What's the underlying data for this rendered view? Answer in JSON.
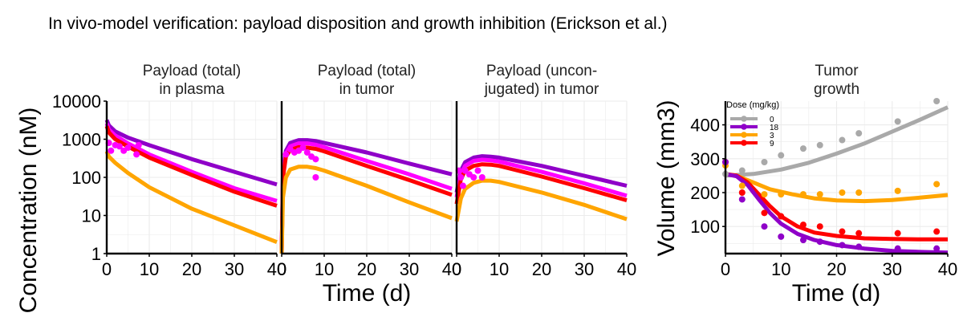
{
  "figure": {
    "title": "In vivo-model verification: payload disposition and growth inhibition (Erickson et al.)"
  },
  "colors": {
    "dose_0": "#a9a9a9",
    "dose_18": "#8f00c8",
    "dose_3": "#ffa500",
    "dose_9": "#ff0000",
    "dose_mag": "#ff00ff",
    "grid": "#ebebeb"
  },
  "chart_data": [
    {
      "id": "plasma",
      "type": "line",
      "title": "Payload (total)\nin plasma",
      "title_lines": [
        "Payload (total)",
        "in plasma"
      ],
      "ylabel": "Concentration (nM)",
      "yscale": "log",
      "ylim": [
        1,
        10000
      ],
      "xlim": [
        0,
        40
      ],
      "x_ticks": [
        0,
        10,
        20,
        30,
        40
      ],
      "y_ticks": [
        1,
        10,
        100,
        1000,
        10000
      ],
      "y_tick_labels": [
        "1",
        "10",
        "100",
        "1000",
        "10000"
      ],
      "grid": true,
      "series": [
        {
          "color": "dose_18",
          "x": [
            0,
            0.5,
            2,
            5,
            10,
            20,
            30,
            40
          ],
          "y": [
            3200,
            2300,
            1600,
            1100,
            700,
            300,
            140,
            65
          ]
        },
        {
          "color": "dose_mag",
          "x": [
            0,
            0.5,
            2,
            5,
            10,
            20,
            30,
            40
          ],
          "y": [
            2600,
            1800,
            1250,
            780,
            400,
            140,
            52,
            24
          ]
        },
        {
          "color": "dose_9",
          "x": [
            0,
            0.5,
            2,
            5,
            10,
            20,
            30,
            40
          ],
          "y": [
            2200,
            1500,
            1000,
            640,
            330,
            115,
            42,
            18
          ]
        },
        {
          "color": "dose_3",
          "x": [
            0,
            0.5,
            2,
            5,
            10,
            20,
            30,
            40
          ],
          "y": [
            480,
            350,
            240,
            130,
            55,
            15,
            5.5,
            2
          ]
        }
      ],
      "points": [
        {
          "color": "dose_mag",
          "x": [
            0.5,
            1,
            2,
            3,
            4,
            5,
            7,
            7.5
          ],
          "y": [
            800,
            500,
            700,
            650,
            500,
            600,
            400,
            700
          ]
        }
      ]
    },
    {
      "id": "tumor_total",
      "type": "line",
      "title": "Payload (total)\nin tumor",
      "title_lines": [
        "Payload (total)",
        "in tumor"
      ],
      "yscale": "log",
      "ylim": [
        1,
        10000
      ],
      "xlim": [
        0,
        40
      ],
      "x_ticks": [
        0,
        10,
        20,
        30,
        40
      ],
      "grid": true,
      "series": [
        {
          "color": "dose_18",
          "x": [
            0,
            0.3,
            1,
            2,
            4,
            6,
            8,
            10,
            20,
            30,
            40
          ],
          "y": [
            1,
            150,
            500,
            800,
            950,
            950,
            900,
            800,
            450,
            230,
            120
          ]
        },
        {
          "color": "dose_mag",
          "x": [
            0,
            0.3,
            1,
            2,
            4,
            6,
            8,
            10,
            20,
            30,
            40
          ],
          "y": [
            1,
            120,
            420,
            650,
            780,
            780,
            720,
            620,
            270,
            120,
            50
          ]
        },
        {
          "color": "dose_9",
          "x": [
            0,
            0.3,
            1,
            2,
            4,
            6,
            8,
            10,
            20,
            30,
            40
          ],
          "y": [
            1,
            100,
            350,
            520,
            620,
            600,
            560,
            480,
            200,
            85,
            35
          ]
        },
        {
          "color": "dose_3",
          "x": [
            0,
            0.3,
            1,
            2,
            4,
            6,
            8,
            10,
            20,
            30,
            40
          ],
          "y": [
            1,
            30,
            100,
            160,
            190,
            190,
            175,
            150,
            60,
            22,
            8.5
          ]
        }
      ],
      "points": [
        {
          "color": "dose_mag",
          "x": [
            1,
            2,
            3,
            4,
            5,
            6,
            7,
            8,
            8
          ],
          "y": [
            400,
            550,
            450,
            500,
            600,
            450,
            350,
            300,
            100
          ]
        }
      ]
    },
    {
      "id": "tumor_unconj",
      "type": "line",
      "title": "Payload (uncon-\njugated) in tumor",
      "title_lines": [
        "Payload (uncon-",
        "jugated) in tumor"
      ],
      "yscale": "log",
      "ylim": [
        1,
        10000
      ],
      "xlim": [
        0,
        40
      ],
      "x_ticks": [
        0,
        10,
        20,
        30,
        40
      ],
      "grid": true,
      "series": [
        {
          "color": "dose_18",
          "x": [
            0,
            1,
            2,
            4,
            6,
            8,
            10,
            20,
            30,
            40
          ],
          "y": [
            40,
            150,
            250,
            330,
            360,
            350,
            330,
            200,
            110,
            60
          ]
        },
        {
          "color": "dose_mag",
          "x": [
            0,
            1,
            2,
            4,
            6,
            8,
            10,
            20,
            30,
            40
          ],
          "y": [
            30,
            120,
            200,
            270,
            290,
            280,
            260,
            140,
            70,
            33
          ]
        },
        {
          "color": "dose_9",
          "x": [
            0,
            1,
            2,
            4,
            6,
            8,
            10,
            20,
            30,
            40
          ],
          "y": [
            20,
            90,
            150,
            200,
            220,
            215,
            200,
            105,
            52,
            25
          ]
        },
        {
          "color": "dose_3",
          "x": [
            0,
            1,
            2,
            4,
            6,
            8,
            10,
            20,
            30,
            40
          ],
          "y": [
            7,
            28,
            50,
            72,
            82,
            82,
            76,
            40,
            19,
            8
          ]
        }
      ],
      "points": [
        {
          "color": "dose_mag",
          "x": [
            0.5,
            1,
            1.5,
            2,
            3,
            4,
            5,
            6
          ],
          "y": [
            150,
            100,
            60,
            150,
            120,
            100,
            150,
            100
          ]
        }
      ]
    },
    {
      "id": "tumor_growth",
      "type": "line",
      "title": "Tumor\ngrowth",
      "title_lines": [
        "Tumor",
        "growth"
      ],
      "ylabel": "Volume (mm3)",
      "yscale": "linear",
      "ylim": [
        20,
        470
      ],
      "xlim": [
        0,
        40
      ],
      "x_ticks": [
        0,
        10,
        20,
        30,
        40
      ],
      "y_ticks": [
        100,
        200,
        300,
        400
      ],
      "y_tick_labels": [
        "100",
        "200",
        "300",
        "400"
      ],
      "grid": true,
      "legend": {
        "title": "Dose (mg/kg)",
        "position": "top-left",
        "entries": [
          {
            "label": "0",
            "color": "dose_0"
          },
          {
            "label": "18",
            "color": "dose_18"
          },
          {
            "label": "3",
            "color": "dose_3"
          },
          {
            "label": "9",
            "color": "dose_9"
          }
        ]
      },
      "series": [
        {
          "name": "0",
          "color": "dose_0",
          "x": [
            0,
            5,
            10,
            15,
            20,
            25,
            30,
            35,
            40
          ],
          "y": [
            250,
            255,
            268,
            288,
            315,
            345,
            380,
            415,
            452
          ]
        },
        {
          "name": "3",
          "color": "dose_3",
          "x": [
            0,
            2,
            5,
            8,
            12,
            16,
            20,
            25,
            30,
            35,
            40
          ],
          "y": [
            255,
            250,
            230,
            210,
            195,
            183,
            177,
            175,
            178,
            185,
            193
          ]
        },
        {
          "name": "9",
          "color": "dose_9",
          "x": [
            0,
            2,
            4,
            6,
            8,
            10,
            13,
            16,
            20,
            25,
            30,
            35,
            40
          ],
          "y": [
            255,
            250,
            230,
            195,
            160,
            130,
            100,
            82,
            72,
            65,
            63,
            62,
            62
          ]
        },
        {
          "name": "18",
          "color": "dose_18",
          "x": [
            0,
            2,
            4,
            6,
            8,
            10,
            13,
            16,
            20,
            25,
            30,
            35,
            40
          ],
          "y": [
            255,
            248,
            222,
            180,
            140,
            108,
            78,
            60,
            45,
            35,
            28,
            25,
            23
          ]
        }
      ],
      "points": [
        {
          "name": "0",
          "color": "dose_0",
          "x": [
            0,
            3,
            7,
            10,
            14,
            17,
            21,
            24,
            31,
            38
          ],
          "y": [
            255,
            265,
            290,
            310,
            330,
            340,
            355,
            375,
            410,
            470
          ]
        },
        {
          "name": "3",
          "color": "dose_3",
          "x": [
            0,
            3,
            7,
            10,
            14,
            17,
            21,
            24,
            31,
            38
          ],
          "y": [
            280,
            220,
            195,
            195,
            195,
            195,
            200,
            200,
            205,
            225
          ]
        },
        {
          "name": "9",
          "color": "dose_9",
          "x": [
            0,
            3,
            7,
            10,
            14,
            17,
            21,
            24,
            31,
            38
          ],
          "y": [
            290,
            200,
            140,
            130,
            105,
            100,
            85,
            80,
            80,
            85
          ]
        },
        {
          "name": "18",
          "color": "dose_18",
          "x": [
            0,
            3,
            7,
            10,
            14,
            17,
            21,
            24,
            31,
            38
          ],
          "y": [
            290,
            180,
            100,
            70,
            60,
            55,
            45,
            40,
            35,
            35
          ]
        }
      ]
    }
  ],
  "shared_axes": {
    "xlabel": "Time (d)"
  }
}
